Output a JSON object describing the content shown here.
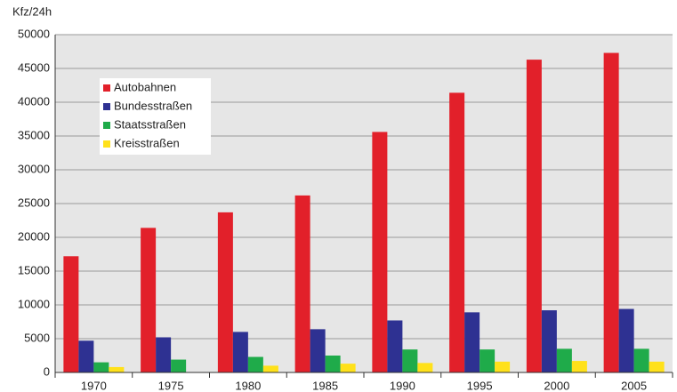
{
  "chart_data": {
    "type": "bar",
    "y_label": "Kfz/24h",
    "categories": [
      "1970",
      "1975",
      "1980",
      "1985",
      "1990",
      "1995",
      "2000",
      "2005"
    ],
    "series": [
      {
        "name": "Autobahnen",
        "color": "#e2202a",
        "values": [
          17200,
          21400,
          23700,
          26200,
          35600,
          41400,
          46300,
          47300
        ]
      },
      {
        "name": "Bundesstraßen",
        "color": "#2e3192",
        "values": [
          4700,
          5200,
          6000,
          6400,
          7700,
          8900,
          9200,
          9400
        ]
      },
      {
        "name": "Staatsstraßen",
        "color": "#1fab4a",
        "values": [
          1500,
          1900,
          2300,
          2500,
          3400,
          3400,
          3500,
          3500
        ]
      },
      {
        "name": "Kreisstraßen",
        "color": "#ffe11a",
        "values": [
          800,
          null,
          1000,
          1300,
          1400,
          1600,
          1700,
          1600
        ]
      }
    ],
    "ylim": [
      0,
      50000
    ],
    "yticks": [
      0,
      5000,
      10000,
      15000,
      20000,
      25000,
      30000,
      35000,
      40000,
      45000,
      50000
    ],
    "grid": true,
    "legend": "upper left"
  }
}
